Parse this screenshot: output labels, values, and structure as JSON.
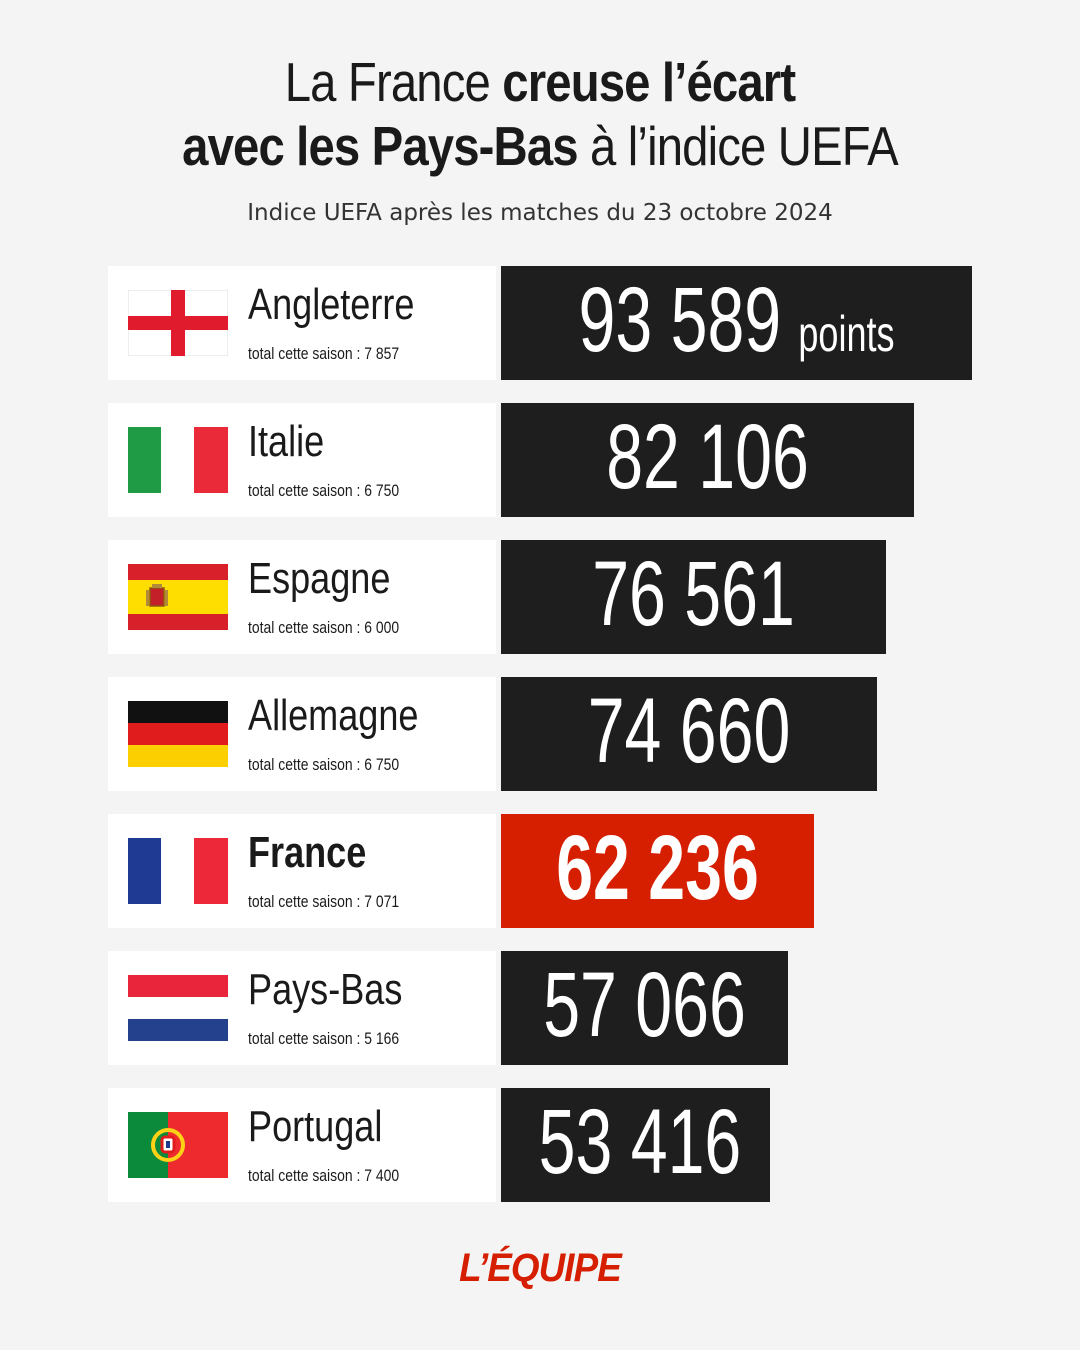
{
  "title": {
    "line1_light": "La France ",
    "line1_bold": "creuse l’écart",
    "line2_bold": "avec les Pays-Bas",
    "line2_light": " à l’indice UEFA"
  },
  "subtitle": "Indice UEFA après les matches du 23 octobre 2024",
  "highlight_color": "#d61e00",
  "bar_color": "#1e1e1e",
  "chart_data": {
    "type": "bar",
    "orientation": "horizontal",
    "unit_label": "points",
    "categories": [
      "Angleterre",
      "Italie",
      "Espagne",
      "Allemagne",
      "France",
      "Pays-Bas",
      "Portugal"
    ],
    "values": [
      93589,
      82106,
      76561,
      74660,
      62236,
      57066,
      53416
    ],
    "value_labels": [
      "93 589",
      "82 106",
      "76 561",
      "74 660",
      "62 236",
      "57 066",
      "53 416"
    ],
    "season_labels": [
      "total cette saison : 7 857",
      "total cette saison : 6 750",
      "total cette saison : 6 000",
      "total cette saison : 6 750",
      "total cette saison : 7 071",
      "total cette saison : 5 166",
      "total cette saison : 7 400"
    ],
    "season_totals": [
      7857,
      6750,
      6000,
      6750,
      7071,
      5166,
      7400
    ],
    "flags": [
      "england-flag-icon",
      "italy-flag-icon",
      "spain-flag-icon",
      "germany-flag-icon",
      "france-flag-icon",
      "netherlands-flag-icon",
      "portugal-flag-icon"
    ],
    "highlighted": "France",
    "grid": false
  },
  "logo": "L’ÉQUIPE"
}
